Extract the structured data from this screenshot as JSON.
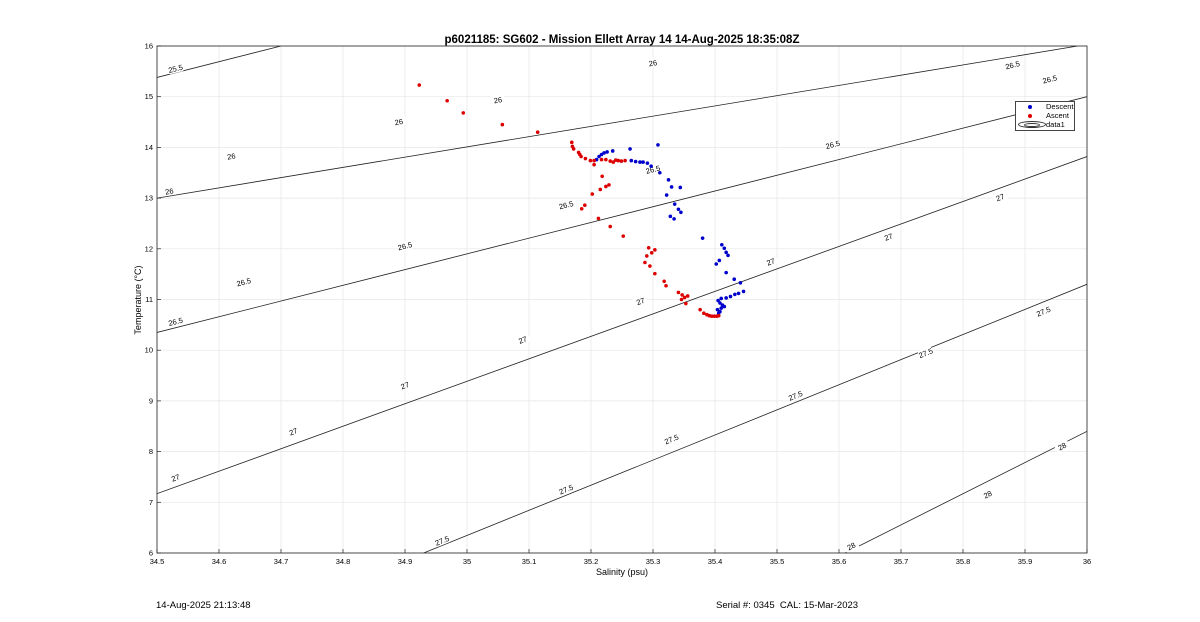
{
  "chart_data": {
    "type": "scatter",
    "title": "p6021185: SG602 - Mission Ellett Array 14 14-Aug-2025 18:35:08Z",
    "xlabel": "Salinity (psu)",
    "ylabel": "Temperature (°C)",
    "xlim": [
      34.5,
      36
    ],
    "ylim": [
      6,
      16
    ],
    "xticks": [
      "34.5",
      "34.6",
      "34.7",
      "34.8",
      "34.9",
      "35",
      "35.1",
      "35.2",
      "35.3",
      "35.4",
      "35.5",
      "35.6",
      "35.7",
      "35.8",
      "35.9",
      "36"
    ],
    "yticks": [
      "6",
      "7",
      "8",
      "9",
      "10",
      "11",
      "12",
      "13",
      "14",
      "15",
      "16"
    ],
    "grid": true,
    "legend_placement": "top-right",
    "legend": [
      "Descent",
      "Ascent",
      "data1"
    ],
    "contour_levels": [
      "25.5",
      "26",
      "26.5",
      "27",
      "27.5",
      "28"
    ],
    "series": [
      {
        "name": "Descent",
        "color": "#0000cc",
        "points": [
          [
            35.209,
            13.76
          ],
          [
            35.213,
            13.82
          ],
          [
            35.217,
            13.86
          ],
          [
            35.221,
            13.89
          ],
          [
            35.226,
            13.91
          ],
          [
            35.235,
            13.93
          ],
          [
            35.263,
            13.97
          ],
          [
            35.308,
            14.05
          ],
          [
            35.265,
            13.74
          ],
          [
            35.272,
            13.72
          ],
          [
            35.279,
            13.71
          ],
          [
            35.284,
            13.71
          ],
          [
            35.291,
            13.69
          ],
          [
            35.297,
            13.63
          ],
          [
            35.311,
            13.5
          ],
          [
            35.325,
            13.36
          ],
          [
            35.33,
            13.22
          ],
          [
            35.344,
            13.21
          ],
          [
            35.322,
            13.06
          ],
          [
            35.335,
            12.88
          ],
          [
            35.341,
            12.78
          ],
          [
            35.345,
            12.72
          ],
          [
            35.328,
            12.64
          ],
          [
            35.334,
            12.59
          ],
          [
            35.38,
            12.21
          ],
          [
            35.411,
            12.08
          ],
          [
            35.415,
            12.01
          ],
          [
            35.418,
            11.93
          ],
          [
            35.421,
            11.87
          ],
          [
            35.407,
            11.77
          ],
          [
            35.402,
            11.7
          ],
          [
            35.418,
            11.53
          ],
          [
            35.431,
            11.4
          ],
          [
            35.441,
            11.33
          ],
          [
            35.446,
            11.16
          ],
          [
            35.438,
            11.12
          ],
          [
            35.432,
            11.1
          ],
          [
            35.425,
            11.06
          ],
          [
            35.418,
            11.03
          ],
          [
            35.41,
            11.02
          ],
          [
            35.405,
            10.98
          ],
          [
            35.408,
            10.93
          ],
          [
            35.412,
            10.89
          ],
          [
            35.415,
            10.86
          ],
          [
            35.41,
            10.83
          ],
          [
            35.404,
            10.8
          ],
          [
            35.408,
            10.76
          ],
          [
            35.406,
            10.73
          ]
        ]
      },
      {
        "name": "Ascent",
        "color": "#dd0000",
        "points": [
          [
            34.923,
            15.23
          ],
          [
            34.968,
            14.92
          ],
          [
            34.994,
            14.68
          ],
          [
            35.057,
            14.45
          ],
          [
            35.114,
            14.3
          ],
          [
            35.169,
            14.1
          ],
          [
            35.17,
            14.02
          ],
          [
            35.172,
            13.97
          ],
          [
            35.18,
            13.9
          ],
          [
            35.182,
            13.86
          ],
          [
            35.184,
            13.82
          ],
          [
            35.191,
            13.78
          ],
          [
            35.199,
            13.74
          ],
          [
            35.205,
            13.74
          ],
          [
            35.217,
            13.76
          ],
          [
            35.224,
            13.76
          ],
          [
            35.231,
            13.73
          ],
          [
            35.236,
            13.71
          ],
          [
            35.24,
            13.75
          ],
          [
            35.244,
            13.74
          ],
          [
            35.249,
            13.73
          ],
          [
            35.255,
            13.74
          ],
          [
            35.205,
            13.66
          ],
          [
            35.218,
            13.43
          ],
          [
            35.229,
            13.26
          ],
          [
            35.224,
            13.23
          ],
          [
            35.215,
            13.17
          ],
          [
            35.202,
            13.08
          ],
          [
            35.19,
            12.86
          ],
          [
            35.185,
            12.79
          ],
          [
            35.212,
            12.6
          ],
          [
            35.231,
            12.44
          ],
          [
            35.252,
            12.25
          ],
          [
            35.293,
            12.02
          ],
          [
            35.303,
            11.98
          ],
          [
            35.298,
            11.92
          ],
          [
            35.29,
            11.86
          ],
          [
            35.287,
            11.73
          ],
          [
            35.295,
            11.66
          ],
          [
            35.303,
            11.51
          ],
          [
            35.318,
            11.36
          ],
          [
            35.321,
            11.27
          ],
          [
            35.341,
            11.14
          ],
          [
            35.347,
            11.09
          ],
          [
            35.356,
            11.07
          ],
          [
            35.351,
            11.04
          ],
          [
            35.346,
            11.0
          ],
          [
            35.353,
            10.92
          ],
          [
            35.376,
            10.8
          ],
          [
            35.382,
            10.73
          ],
          [
            35.387,
            10.7
          ],
          [
            35.391,
            10.68
          ],
          [
            35.395,
            10.67
          ],
          [
            35.399,
            10.67
          ],
          [
            35.403,
            10.67
          ],
          [
            35.406,
            10.68
          ]
        ]
      }
    ]
  },
  "footer": {
    "timestamp": "14-Aug-2025 21:13:48",
    "serial": "Serial #: 0345  CAL: 15-Mar-2023"
  }
}
